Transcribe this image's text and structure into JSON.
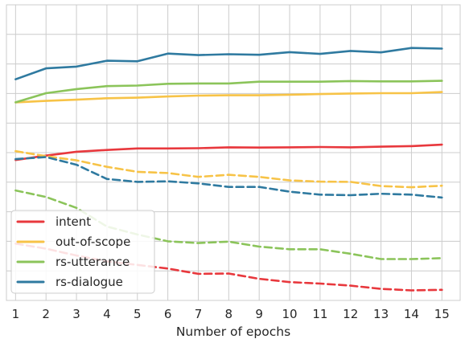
{
  "chart_data": {
    "type": "line",
    "xlabel": "Number of epochs",
    "ylabel": "",
    "x": [
      1,
      2,
      3,
      4,
      5,
      6,
      7,
      8,
      9,
      10,
      11,
      12,
      13,
      14,
      15
    ],
    "xlim": [
      0.7,
      15.6
    ],
    "ylim": [
      0,
      100
    ],
    "grid": true,
    "legend_position": "bottom-left",
    "colors": {
      "intent": "#e8383d",
      "out-of-scope": "#f7c347",
      "rs-utterance": "#8bc45a",
      "rs-dialogue": "#2f7aa0"
    },
    "legend": [
      "intent",
      "out-of-scope",
      "rs-utterance",
      "rs-dialogue"
    ],
    "series": [
      {
        "name": "intent",
        "style": "solid",
        "values": [
          47.5,
          49.0,
          50.3,
          50.9,
          51.4,
          51.4,
          51.5,
          51.8,
          51.7,
          51.8,
          51.9,
          51.8,
          52.0,
          52.2,
          52.7
        ]
      },
      {
        "name": "out-of-scope",
        "style": "solid",
        "values": [
          67.0,
          67.5,
          67.9,
          68.4,
          68.6,
          69.0,
          69.3,
          69.4,
          69.4,
          69.6,
          69.8,
          70.0,
          70.1,
          70.1,
          70.5
        ]
      },
      {
        "name": "rs-utterance",
        "style": "solid",
        "values": [
          67.0,
          70.1,
          71.5,
          72.5,
          72.7,
          73.3,
          73.4,
          73.4,
          74.0,
          74.0,
          74.0,
          74.2,
          74.1,
          74.1,
          74.3
        ]
      },
      {
        "name": "rs-dialogue",
        "style": "solid",
        "values": [
          74.8,
          78.5,
          79.1,
          81.1,
          80.9,
          83.5,
          83.0,
          83.3,
          83.1,
          84.0,
          83.4,
          84.4,
          83.9,
          85.4,
          85.2
        ]
      },
      {
        "name": "intent",
        "style": "dashed",
        "values": [
          19.2,
          17.5,
          15.2,
          13.2,
          12.0,
          10.8,
          9.0,
          9.1,
          7.3,
          6.2,
          5.7,
          5.0,
          3.9,
          3.4,
          3.6
        ]
      },
      {
        "name": "out-of-scope",
        "style": "dashed",
        "values": [
          50.5,
          48.8,
          47.4,
          45.2,
          43.5,
          43.1,
          41.8,
          42.5,
          41.8,
          40.6,
          40.2,
          40.1,
          38.7,
          38.3,
          38.8
        ]
      },
      {
        "name": "rs-utterance",
        "style": "dashed",
        "values": [
          37.2,
          35.0,
          31.3,
          25.0,
          22.3,
          20.0,
          19.4,
          19.9,
          18.2,
          17.3,
          17.3,
          15.8,
          14.0,
          14.0,
          14.3
        ]
      },
      {
        "name": "rs-dialogue",
        "style": "dashed",
        "values": [
          47.8,
          48.5,
          45.9,
          41.1,
          40.1,
          40.3,
          39.6,
          38.4,
          38.4,
          36.8,
          35.8,
          35.6,
          36.1,
          35.8,
          34.8
        ]
      }
    ]
  }
}
